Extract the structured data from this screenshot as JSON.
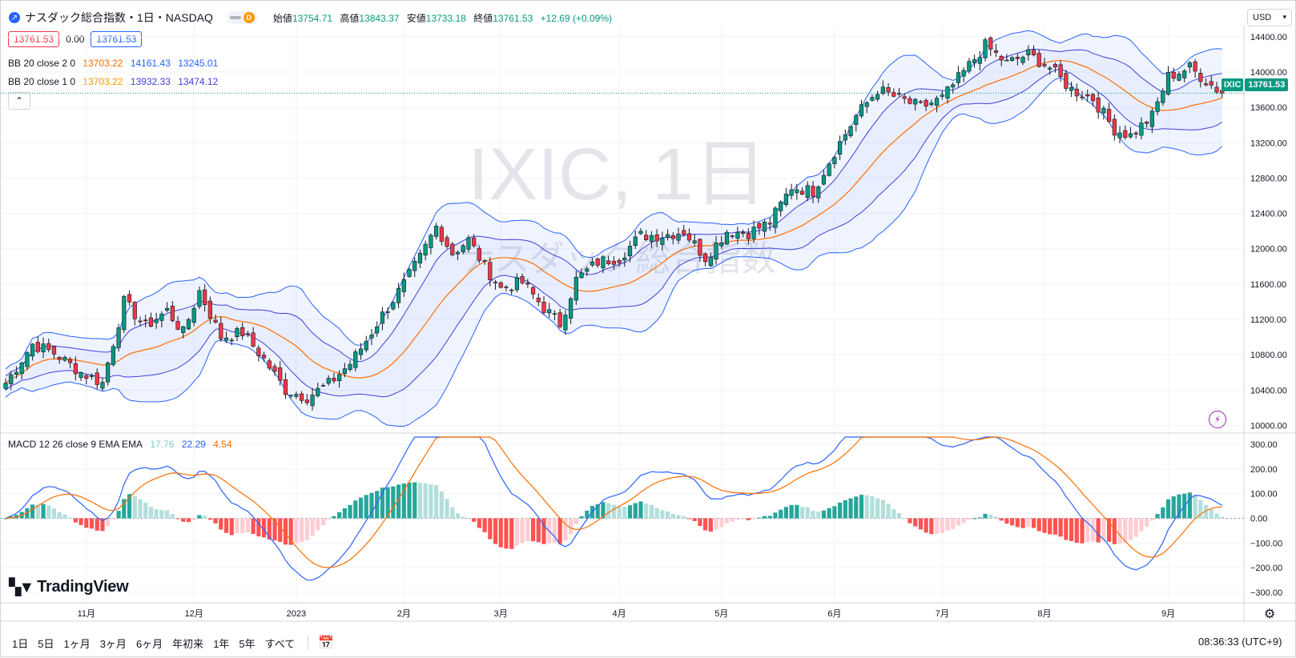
{
  "header": {
    "symbol_title": "ナスダック総合指数・1日・NASDAQ",
    "interval_badge": "D",
    "ohlc": [
      {
        "label": "始値",
        "value": "13754.71"
      },
      {
        "label": "高値",
        "value": "13843.37"
      },
      {
        "label": "安値",
        "value": "13733.18"
      },
      {
        "label": "終値",
        "value": "13761.53"
      },
      {
        "label": "",
        "value": "+12.69 (+0.09%)"
      }
    ],
    "currency": "USD"
  },
  "quote": {
    "sell": "13761.53",
    "spread": "0.00",
    "buy": "13761.53"
  },
  "legends": {
    "bb2": {
      "title": "BB 20 close 2 0",
      "basis": "13703.22",
      "upper": "14161.43",
      "lower": "13245.01"
    },
    "bb1": {
      "title": "BB 20 close 1 0",
      "basis": "13703.22",
      "upper": "13932.33",
      "lower": "13474.12"
    },
    "macd": {
      "title": "MACD 12 26 close 9 EMA EMA",
      "hist": "17.76",
      "macd": "22.29",
      "signal": "4.54"
    }
  },
  "watermark": {
    "line1": "IXIC, 1日",
    "line2": "ナスダック総合指数"
  },
  "price_tag": {
    "symbol": "IXIC",
    "value": "13761.53"
  },
  "brand": "TradingView",
  "price_axis": [
    "14400.00",
    "14000.00",
    "13600.00",
    "13200.00",
    "12800.00",
    "12400.00",
    "12000.00",
    "11600.00",
    "11200.00",
    "10800.00",
    "10400.00",
    "10000.00"
  ],
  "macd_axis": [
    "300.00",
    "200.00",
    "100.00",
    "0.00",
    "−100.00",
    "−200.00",
    "−300.00"
  ],
  "time_axis": [
    "11月",
    "12月",
    "2023",
    "2月",
    "3月",
    "4月",
    "5月",
    "6月",
    "7月",
    "8月",
    "9月"
  ],
  "timeframes": [
    "1日",
    "5日",
    "1ヶ月",
    "3ヶ月",
    "6ヶ月",
    "年初来",
    "1年",
    "5年",
    "すべて"
  ],
  "clock": "08:36:33 (UTC+9)",
  "colors": {
    "up": "#089981",
    "down": "#f23645",
    "bb_band": "#2962ff",
    "basis": "#ff6d00",
    "macd": "#2962ff",
    "signal": "#ff6d00"
  },
  "chart_data": {
    "type": "candlestick",
    "close_anchors": [
      [
        0,
        10480
      ],
      [
        5,
        10920
      ],
      [
        9,
        10820
      ],
      [
        14,
        10600
      ],
      [
        18,
        10480
      ],
      [
        22,
        11400
      ],
      [
        26,
        11120
      ],
      [
        30,
        11300
      ],
      [
        33,
        11050
      ],
      [
        36,
        11520
      ],
      [
        40,
        11000
      ],
      [
        44,
        11050
      ],
      [
        48,
        10750
      ],
      [
        52,
        10400
      ],
      [
        56,
        10320
      ],
      [
        60,
        10470
      ],
      [
        64,
        10700
      ],
      [
        67,
        10960
      ],
      [
        70,
        11250
      ],
      [
        74,
        11600
      ],
      [
        77,
        11900
      ],
      [
        80,
        12250
      ],
      [
        83,
        11950
      ],
      [
        86,
        12100
      ],
      [
        89,
        11800
      ],
      [
        92,
        11550
      ],
      [
        96,
        11620
      ],
      [
        100,
        11330
      ],
      [
        103,
        11150
      ],
      [
        106,
        11650
      ],
      [
        110,
        11850
      ],
      [
        114,
        11900
      ],
      [
        118,
        12150
      ],
      [
        122,
        12150
      ],
      [
        126,
        12200
      ],
      [
        130,
        11900
      ],
      [
        134,
        12200
      ],
      [
        138,
        12180
      ],
      [
        142,
        12300
      ],
      [
        146,
        12700
      ],
      [
        150,
        12650
      ],
      [
        154,
        13100
      ],
      [
        158,
        13500
      ],
      [
        162,
        13800
      ],
      [
        166,
        13700
      ],
      [
        170,
        13600
      ],
      [
        174,
        13700
      ],
      [
        178,
        14000
      ],
      [
        182,
        14300
      ],
      [
        186,
        14100
      ],
      [
        190,
        14200
      ],
      [
        194,
        14050
      ],
      [
        198,
        13800
      ],
      [
        202,
        13700
      ],
      [
        206,
        13350
      ],
      [
        209,
        13280
      ],
      [
        213,
        13500
      ],
      [
        216,
        13950
      ],
      [
        220,
        14050
      ],
      [
        223,
        13900
      ],
      [
        226,
        13761
      ]
    ],
    "bollinger": {
      "period": 20,
      "multipliers": [
        1,
        2
      ]
    },
    "macd": {
      "fast": 12,
      "slow": 26,
      "signal": 9
    },
    "price_range": [
      9950,
      14480
    ],
    "macd_range": [
      -330,
      330
    ]
  }
}
